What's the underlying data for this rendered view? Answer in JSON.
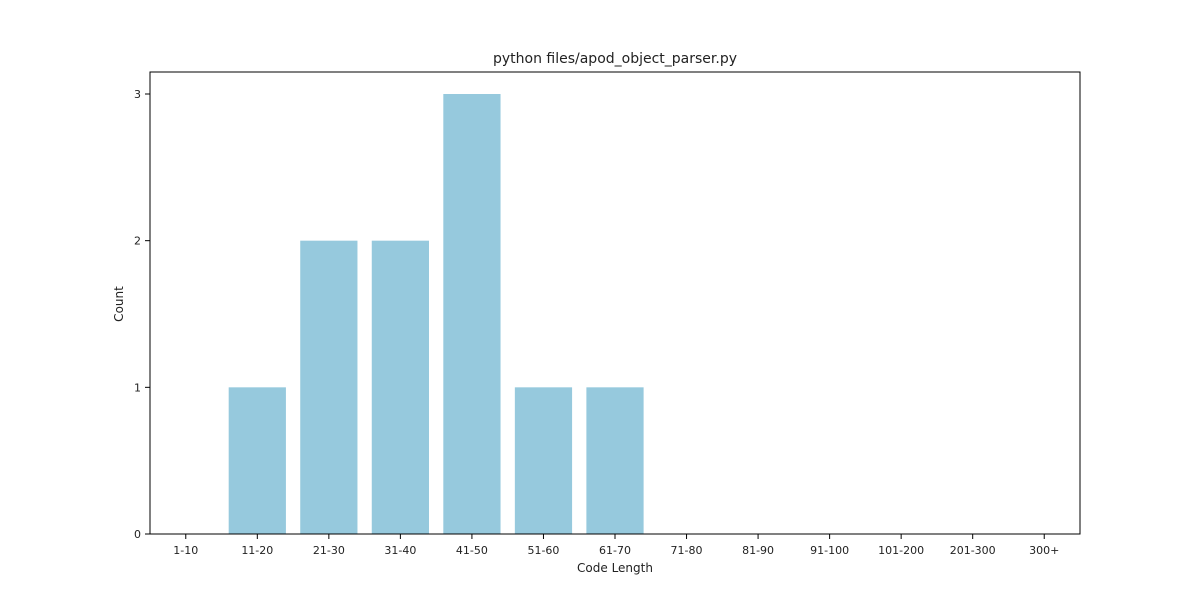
{
  "chart_data": {
    "type": "bar",
    "title": "python files/apod_object_parser.py",
    "xlabel": "Code Length",
    "ylabel": "Count",
    "categories": [
      "1-10",
      "11-20",
      "21-30",
      "31-40",
      "41-50",
      "51-60",
      "61-70",
      "71-80",
      "81-90",
      "91-100",
      "101-200",
      "201-300",
      "300+"
    ],
    "values": [
      0,
      1,
      2,
      2,
      3,
      1,
      1,
      0,
      0,
      0,
      0,
      0,
      0
    ],
    "yticks": [
      0,
      1,
      2,
      3
    ],
    "ylim": [
      0,
      3.15
    ],
    "grid": false,
    "legend": "none",
    "colors": {
      "bar": "#96c9dd",
      "axis": "#000000",
      "text": "#222222"
    }
  }
}
